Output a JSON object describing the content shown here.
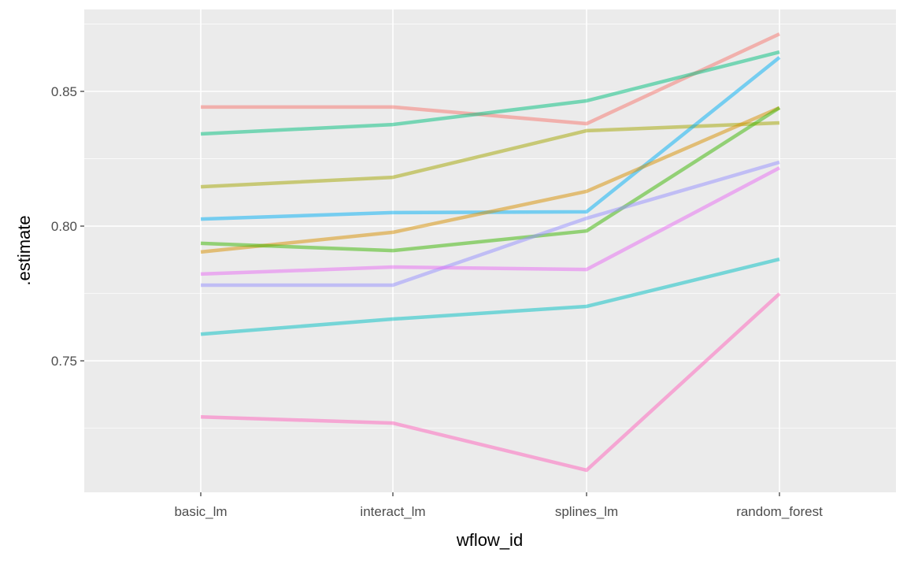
{
  "chart_data": {
    "type": "line",
    "title": "",
    "xlabel": "wflow_id",
    "ylabel": ".estimate",
    "categories": [
      "basic_lm",
      "interact_lm",
      "splines_lm",
      "random_forest"
    ],
    "ylim": [
      0.7012,
      0.8804
    ],
    "yticks": [
      0.75,
      0.8,
      0.85
    ],
    "ytick_labels": [
      "0.75",
      "0.80",
      "0.85"
    ],
    "yminor": [
      0.725,
      0.775,
      0.825,
      0.875
    ],
    "grid": true,
    "legend": "none",
    "series": [
      {
        "name": "series-1",
        "color": "#F8766D",
        "values": [
          0.8442,
          0.8442,
          0.838,
          0.8713
        ]
      },
      {
        "name": "series-2",
        "color": "#00BF7D",
        "values": [
          0.8342,
          0.8377,
          0.8465,
          0.8646
        ]
      },
      {
        "name": "series-3",
        "color": "#A3A500",
        "values": [
          0.8146,
          0.8181,
          0.8354,
          0.8383
        ]
      },
      {
        "name": "series-4",
        "color": "#00B0F6",
        "values": [
          0.8026,
          0.805,
          0.8053,
          0.8626
        ]
      },
      {
        "name": "series-5",
        "color": "#D89000",
        "values": [
          0.7904,
          0.7977,
          0.8129,
          0.8439
        ]
      },
      {
        "name": "series-6",
        "color": "#39B600",
        "values": [
          0.7936,
          0.7909,
          0.7982,
          0.8439
        ]
      },
      {
        "name": "series-7",
        "color": "#9590FF",
        "values": [
          0.7781,
          0.7781,
          0.8029,
          0.8237
        ]
      },
      {
        "name": "series-8",
        "color": "#E76BF3",
        "values": [
          0.7822,
          0.7848,
          0.7839,
          0.8216
        ]
      },
      {
        "name": "series-9",
        "color": "#00BFC4",
        "values": [
          0.7599,
          0.7655,
          0.7702,
          0.7877
        ]
      },
      {
        "name": "series-10",
        "color": "#FF62BC",
        "values": [
          0.7292,
          0.7269,
          0.7094,
          0.7749
        ]
      }
    ]
  }
}
